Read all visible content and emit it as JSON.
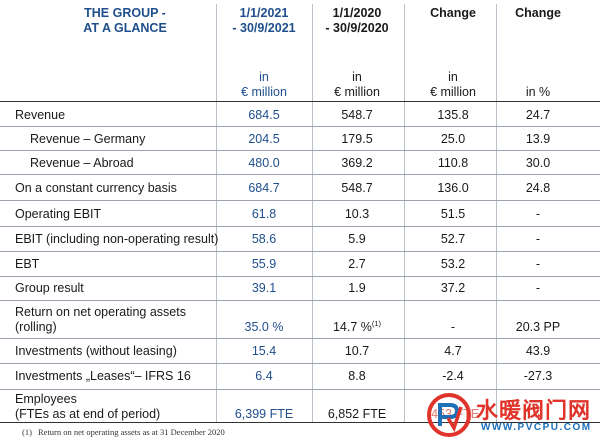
{
  "header": {
    "title": "THE GROUP -\nAT A GLANCE",
    "col1": "1/1/2021\n- 30/9/2021",
    "col2": "1/1/2020\n- 30/9/2020",
    "col3": "Change",
    "col4": "Change"
  },
  "units": {
    "col1": "in\n€ million",
    "col2": "in\n€ million",
    "col3": "in\n€ million",
    "col4": "in %"
  },
  "rows": [
    {
      "label": "Revenue",
      "v1": "684.5",
      "v2": "548.7",
      "v3": "135.8",
      "v4": "24.7"
    },
    {
      "label": "Revenue – Germany",
      "v1": "204.5",
      "v2": "179.5",
      "v3": "25.0",
      "v4": "13.9"
    },
    {
      "label": "Revenue – Abroad",
      "v1": "480.0",
      "v2": "369.2",
      "v3": "110.8",
      "v4": "30.0"
    },
    {
      "label": "On a constant currency basis",
      "v1": "684.7",
      "v2": "548.7",
      "v3": "136.0",
      "v4": "24.8"
    },
    {
      "label": "Operating EBIT",
      "v1": "61.8",
      "v2": "10.3",
      "v3": "51.5",
      "v4": "-"
    },
    {
      "label": "EBIT (including non-operating result)",
      "v1": "58.6",
      "v2": "5.9",
      "v3": "52.7",
      "v4": "-"
    },
    {
      "label": "EBT",
      "v1": "55.9",
      "v2": "2.7",
      "v3": "53.2",
      "v4": "-"
    },
    {
      "label": "Group result",
      "v1": "39.1",
      "v2": "1.9",
      "v3": "37.2",
      "v4": "-"
    },
    {
      "label": "Return on net operating assets\n(rolling)",
      "v1": "35.0 %",
      "v2": "14.7 %",
      "v2_sup": "(1)",
      "v3": "-",
      "v4": "20.3 PP"
    },
    {
      "label": "Investments (without leasing)",
      "v1": "15.4",
      "v2": "10.7",
      "v3": "4.7",
      "v4": "43.9"
    },
    {
      "label": "Investments „Leases“– IFRS 16",
      "v1": "6.4",
      "v2": "8.8",
      "v3": "-2.4",
      "v4": "-27.3"
    },
    {
      "label": "Employees\n(FTEs as at end of period)",
      "v1": "6,399 FTE",
      "v2": "6,852 FTE",
      "v3": "-453 FTE",
      "v4": ""
    }
  ],
  "footnote": {
    "mark": "(1)",
    "text": "Return on net operating assets as at 31 December 2020"
  },
  "watermark": {
    "text": "水暖阀门网",
    "url": "WWW.PVCPU.COM",
    "logo": "pv-logo-icon"
  },
  "colors": {
    "blue": "#1f4e8c",
    "watermark_red": "#e0342b",
    "watermark_blue": "#1e6fb8"
  }
}
